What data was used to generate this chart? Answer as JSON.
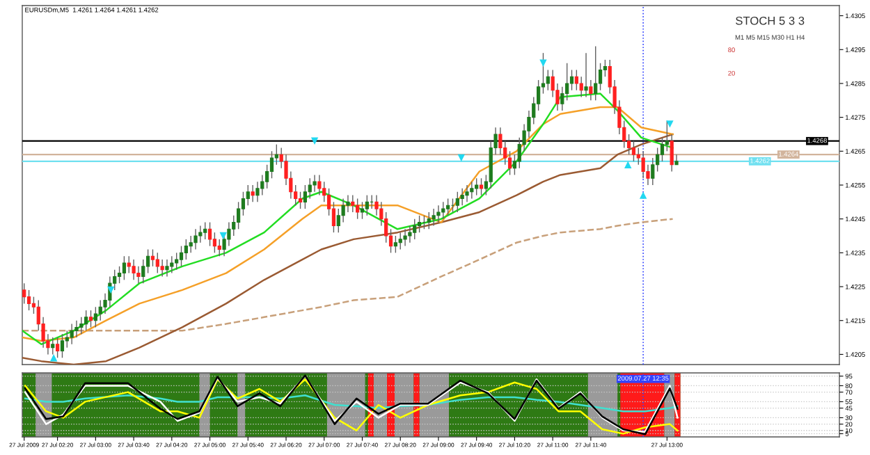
{
  "chart_data": [
    {
      "type": "candlestick",
      "title": "EURUSDm,M5  1.4261 1.4264 1.4261 1.4262",
      "annotations": [
        "STOCH 5 3 3",
        "M1 M5 M15 M30 H1 H4",
        "80",
        "20"
      ],
      "colors": [
        "#ff2020",
        "#ff2020",
        "#ff2020",
        "#ff2020",
        "#ff2020",
        "#ff2020",
        "#1e7b1e",
        "#ff2020",
        "#1e7b1e",
        "#1e7b1e",
        "#1e7b1e",
        "#1e7b1e",
        "#1e7b1e",
        "#1e7b1e",
        "#ff2020",
        "#1e7b1e",
        "#1e7b1e",
        "#1e7b1e",
        "#1e7b1e",
        "#1e7b1e",
        "#1e7b1e",
        "#1e7b1e",
        "#ff2020",
        "#ff2020",
        "#ff2020",
        "#1e7b1e",
        "#1e7b1e",
        "#ff2020",
        "#ff2020",
        "#ff2020",
        "#1e7b1e",
        "#1e7b1e",
        "#1e7b1e",
        "#1e7b1e",
        "#1e7b1e",
        "#1e7b1e",
        "#1e7b1e",
        "#1e7b1e",
        "#1e7b1e",
        "#ff2020",
        "#ff2020",
        "#ff2020",
        "#1e7b1e",
        "#1e7b1e",
        "#1e7b1e",
        "#1e7b1e",
        "#1e7b1e",
        "#1e7b1e",
        "#ff2020",
        "#1e7b1e",
        "#1e7b1e",
        "#1e7b1e",
        "#1e7b1e",
        "#1e7b1e",
        "#ff2020",
        "#ff2020",
        "#ff2020",
        "#ff2020",
        "#ff2020",
        "#1e7b1e",
        "#1e7b1e",
        "#1e7b1e",
        "#ff2020",
        "#ff2020",
        "#ff2020",
        "#ff2020",
        "#1e7b1e",
        "#1e7b1e",
        "#1e7b1e",
        "#ff2020",
        "#ff2020",
        "#1e7b1e",
        "#1e7b1e",
        "#1e7b1e",
        "#ff2020",
        "#ff2020",
        "#ff2020",
        "#ff2020",
        "#1e7b1e",
        "#1e7b1e",
        "#1e7b1e",
        "#1e7b1e",
        "#1e7b1e",
        "#1e7b1e",
        "#1e7b1e",
        "#1e7b1e",
        "#1e7b1e",
        "#1e7b1e",
        "#1e7b1e",
        "#1e7b1e",
        "#1e7b1e",
        "#1e7b1e",
        "#1e7b1e",
        "#1e7b1e",
        "#1e7b1e",
        "#1e7b1e",
        "#ff2020",
        "#1e7b1e",
        "#1e7b1e",
        "#1e7b1e",
        "#ff2020",
        "#ff2020",
        "#ff2020",
        "#1e7b1e",
        "#1e7b1e",
        "#1e7b1e",
        "#1e7b1e",
        "#1e7b1e",
        "#1e7b1e",
        "#1e7b1e",
        "#1e7b1e",
        "#ff2020",
        "#ff2020",
        "#1e7b1e",
        "#1e7b1e",
        "#1e7b1e",
        "#ff2020",
        "#ff2020",
        "#1e7b1e",
        "#ff2020",
        "#1e7b1e",
        "#1e7b1e",
        "#1e7b1e",
        "#ff2020",
        "#ff2020",
        "#ff2020",
        "#ff2020",
        "#ff2020",
        "#ff2020",
        "#ff2020",
        "#ff2020",
        "#ff2020",
        "#1e7b1e",
        "#1e7b1e",
        "#1e7b1e",
        "#1e7b1e",
        "#ff2020",
        "#1e7b1e"
      ],
      "x": [
        "2009-07-27T01:45",
        "2009-07-27T01:50",
        "2009-07-27T01:55",
        "2009-07-27T02:00",
        "2009-07-27T02:05",
        "2009-07-27T02:10",
        "2009-07-27T02:15",
        "2009-07-27T02:20",
        "2009-07-27T02:25",
        "2009-07-27T02:30",
        "2009-07-27T02:35",
        "2009-07-27T02:40",
        "2009-07-27T02:45",
        "2009-07-27T02:50",
        "2009-07-27T02:55",
        "2009-07-27T03:00",
        "2009-07-27T03:05",
        "2009-07-27T03:10",
        "2009-07-27T03:15",
        "2009-07-27T03:20",
        "2009-07-27T03:25",
        "2009-07-27T03:30",
        "2009-07-27T03:35",
        "2009-07-27T03:40",
        "2009-07-27T03:45",
        "2009-07-27T03:50",
        "2009-07-27T03:55",
        "2009-07-27T04:00",
        "2009-07-27T04:05",
        "2009-07-27T04:10",
        "2009-07-27T04:15",
        "2009-07-27T04:20",
        "2009-07-27T04:25",
        "2009-07-27T04:30",
        "2009-07-27T04:35",
        "2009-07-27T04:40",
        "2009-07-27T04:45",
        "2009-07-27T04:50",
        "2009-07-27T04:55",
        "2009-07-27T05:00",
        "2009-07-27T05:05",
        "2009-07-27T05:10",
        "2009-07-27T05:15",
        "2009-07-27T05:20",
        "2009-07-27T05:25",
        "2009-07-27T05:30",
        "2009-07-27T05:35",
        "2009-07-27T05:40",
        "2009-07-27T05:45",
        "2009-07-27T05:50",
        "2009-07-27T05:55",
        "2009-07-27T06:00",
        "2009-07-27T06:05",
        "2009-07-27T06:10",
        "2009-07-27T06:15",
        "2009-07-27T06:20",
        "2009-07-27T06:25",
        "2009-07-27T06:30",
        "2009-07-27T06:35",
        "2009-07-27T06:40",
        "2009-07-27T06:45",
        "2009-07-27T06:50",
        "2009-07-27T06:55",
        "2009-07-27T07:00",
        "2009-07-27T07:05",
        "2009-07-27T07:10",
        "2009-07-27T07:15",
        "2009-07-27T07:20",
        "2009-07-27T07:25",
        "2009-07-27T07:30",
        "2009-07-27T07:35",
        "2009-07-27T07:40",
        "2009-07-27T07:45",
        "2009-07-27T07:50",
        "2009-07-27T07:55",
        "2009-07-27T08:00",
        "2009-07-27T08:05",
        "2009-07-27T08:10",
        "2009-07-27T08:15",
        "2009-07-27T08:20",
        "2009-07-27T08:25",
        "2009-07-27T08:30",
        "2009-07-27T08:35",
        "2009-07-27T08:40",
        "2009-07-27T08:45",
        "2009-07-27T08:50",
        "2009-07-27T08:55",
        "2009-07-27T09:00",
        "2009-07-27T09:05",
        "2009-07-27T09:10",
        "2009-07-27T09:15",
        "2009-07-27T09:20",
        "2009-07-27T09:25",
        "2009-07-27T09:30",
        "2009-07-27T09:35",
        "2009-07-27T09:40",
        "2009-07-27T09:45",
        "2009-07-27T09:50",
        "2009-07-27T09:55",
        "2009-07-27T10:00",
        "2009-07-27T10:05",
        "2009-07-27T10:10",
        "2009-07-27T10:15",
        "2009-07-27T10:20",
        "2009-07-27T10:25",
        "2009-07-27T10:30",
        "2009-07-27T10:35",
        "2009-07-27T10:40",
        "2009-07-27T10:45",
        "2009-07-27T10:50",
        "2009-07-27T10:55",
        "2009-07-27T11:00",
        "2009-07-27T11:05",
        "2009-07-27T11:10",
        "2009-07-27T11:15",
        "2009-07-27T11:20",
        "2009-07-27T11:25",
        "2009-07-27T11:30",
        "2009-07-27T11:35",
        "2009-07-27T11:40",
        "2009-07-27T11:45",
        "2009-07-27T11:50",
        "2009-07-27T11:55",
        "2009-07-27T12:00",
        "2009-07-27T12:05",
        "2009-07-27T12:10",
        "2009-07-27T12:15",
        "2009-07-27T12:20",
        "2009-07-27T12:25",
        "2009-07-27T12:30",
        "2009-07-27T12:35",
        "2009-07-27T12:40",
        "2009-07-27T12:45",
        "2009-07-27T12:50",
        "2009-07-27T12:55",
        "2009-07-27T13:00",
        "2009-07-27T13:05",
        "2009-07-27T13:10"
      ],
      "ohlc": [
        [
          1.4224,
          1.4226,
          1.422,
          1.4222
        ],
        [
          1.4222,
          1.4224,
          1.4218,
          1.422
        ],
        [
          1.422,
          1.4222,
          1.4217,
          1.4219
        ],
        [
          1.4219,
          1.4221,
          1.4212,
          1.4214
        ],
        [
          1.4214,
          1.4216,
          1.4207,
          1.4209
        ],
        [
          1.4209,
          1.4211,
          1.4205,
          1.4207
        ],
        [
          1.4207,
          1.421,
          1.4205,
          1.4208
        ],
        [
          1.4208,
          1.421,
          1.4204,
          1.4206
        ],
        [
          1.4206,
          1.4211,
          1.4204,
          1.4209
        ],
        [
          1.4209,
          1.4212,
          1.4207,
          1.421
        ],
        [
          1.421,
          1.4214,
          1.4208,
          1.4212
        ],
        [
          1.4212,
          1.4215,
          1.421,
          1.4213
        ],
        [
          1.4213,
          1.4216,
          1.4211,
          1.4214
        ],
        [
          1.4214,
          1.4218,
          1.4212,
          1.4216
        ],
        [
          1.4216,
          1.4218,
          1.4213,
          1.4215
        ],
        [
          1.4215,
          1.4219,
          1.4213,
          1.4217
        ],
        [
          1.4217,
          1.4221,
          1.4215,
          1.4219
        ],
        [
          1.4219,
          1.4223,
          1.4217,
          1.4221
        ],
        [
          1.4221,
          1.4228,
          1.4219,
          1.4226
        ],
        [
          1.4226,
          1.423,
          1.4224,
          1.4228
        ],
        [
          1.4228,
          1.4231,
          1.4226,
          1.4229
        ],
        [
          1.4229,
          1.4234,
          1.4227,
          1.4232
        ],
        [
          1.4232,
          1.4234,
          1.4229,
          1.4231
        ],
        [
          1.4231,
          1.4233,
          1.4227,
          1.4229
        ],
        [
          1.4229,
          1.4231,
          1.4226,
          1.4228
        ],
        [
          1.4228,
          1.4233,
          1.4226,
          1.4231
        ],
        [
          1.4231,
          1.4236,
          1.4229,
          1.4234
        ],
        [
          1.4234,
          1.4236,
          1.4231,
          1.4233
        ],
        [
          1.4233,
          1.4235,
          1.4229,
          1.4231
        ],
        [
          1.4231,
          1.4233,
          1.4228,
          1.423
        ],
        [
          1.423,
          1.4233,
          1.4228,
          1.4231
        ],
        [
          1.4231,
          1.4234,
          1.4229,
          1.4232
        ],
        [
          1.4232,
          1.4235,
          1.423,
          1.4233
        ],
        [
          1.4233,
          1.4237,
          1.4231,
          1.4235
        ],
        [
          1.4235,
          1.4239,
          1.4233,
          1.4237
        ],
        [
          1.4237,
          1.424,
          1.4235,
          1.4238
        ],
        [
          1.4238,
          1.4242,
          1.4236,
          1.424
        ],
        [
          1.424,
          1.4243,
          1.4238,
          1.4241
        ],
        [
          1.4241,
          1.4244,
          1.4239,
          1.4242
        ],
        [
          1.4242,
          1.4244,
          1.4237,
          1.4239
        ],
        [
          1.4239,
          1.4241,
          1.4235,
          1.4237
        ],
        [
          1.4237,
          1.4239,
          1.4234,
          1.4236
        ],
        [
          1.4236,
          1.4241,
          1.4234,
          1.4239
        ],
        [
          1.4239,
          1.4244,
          1.4237,
          1.4242
        ],
        [
          1.4242,
          1.4246,
          1.424,
          1.4244
        ],
        [
          1.4244,
          1.425,
          1.4242,
          1.4248
        ],
        [
          1.4248,
          1.4253,
          1.4246,
          1.4251
        ],
        [
          1.4251,
          1.4255,
          1.4249,
          1.4253
        ],
        [
          1.4253,
          1.4255,
          1.425,
          1.4252
        ],
        [
          1.4252,
          1.4256,
          1.425,
          1.4254
        ],
        [
          1.4254,
          1.4258,
          1.4252,
          1.4256
        ],
        [
          1.4256,
          1.4261,
          1.4254,
          1.4259
        ],
        [
          1.4259,
          1.4265,
          1.4257,
          1.4263
        ],
        [
          1.4263,
          1.4267,
          1.4261,
          1.4264
        ],
        [
          1.4264,
          1.4266,
          1.426,
          1.4262
        ],
        [
          1.4262,
          1.4264,
          1.4255,
          1.4257
        ],
        [
          1.4257,
          1.4259,
          1.4251,
          1.4253
        ],
        [
          1.4253,
          1.4255,
          1.4249,
          1.4251
        ],
        [
          1.4251,
          1.4253,
          1.4248,
          1.425
        ],
        [
          1.425,
          1.4255,
          1.4248,
          1.4253
        ],
        [
          1.4253,
          1.4257,
          1.4251,
          1.4255
        ],
        [
          1.4255,
          1.4258,
          1.4253,
          1.4256
        ],
        [
          1.4256,
          1.4258,
          1.4252,
          1.4254
        ],
        [
          1.4254,
          1.4256,
          1.425,
          1.4252
        ],
        [
          1.4252,
          1.4254,
          1.4246,
          1.4248
        ],
        [
          1.4248,
          1.425,
          1.4241,
          1.4243
        ],
        [
          1.4243,
          1.4248,
          1.4241,
          1.4246
        ],
        [
          1.4246,
          1.4251,
          1.4244,
          1.4249
        ],
        [
          1.4249,
          1.4252,
          1.4247,
          1.425
        ],
        [
          1.425,
          1.4252,
          1.4247,
          1.4249
        ],
        [
          1.4249,
          1.4251,
          1.4245,
          1.4247
        ],
        [
          1.4247,
          1.425,
          1.4245,
          1.4248
        ],
        [
          1.4248,
          1.4252,
          1.4246,
          1.425
        ],
        [
          1.425,
          1.4252,
          1.4248,
          1.425
        ],
        [
          1.425,
          1.4252,
          1.4246,
          1.4248
        ],
        [
          1.4248,
          1.425,
          1.4243,
          1.4245
        ],
        [
          1.4245,
          1.4247,
          1.4238,
          1.424
        ],
        [
          1.424,
          1.4242,
          1.4235,
          1.4237
        ],
        [
          1.4237,
          1.424,
          1.4235,
          1.4238
        ],
        [
          1.4238,
          1.4241,
          1.4236,
          1.4239
        ],
        [
          1.4239,
          1.4242,
          1.4237,
          1.424
        ],
        [
          1.424,
          1.4243,
          1.4238,
          1.4241
        ],
        [
          1.4241,
          1.4245,
          1.4239,
          1.4243
        ],
        [
          1.4243,
          1.4246,
          1.4241,
          1.4244
        ],
        [
          1.4244,
          1.4246,
          1.4242,
          1.4244
        ],
        [
          1.4244,
          1.4247,
          1.4242,
          1.4245
        ],
        [
          1.4245,
          1.4248,
          1.4243,
          1.4246
        ],
        [
          1.4246,
          1.4249,
          1.4244,
          1.4247
        ],
        [
          1.4247,
          1.425,
          1.4245,
          1.4248
        ],
        [
          1.4248,
          1.4251,
          1.4246,
          1.4249
        ],
        [
          1.4249,
          1.4251,
          1.4247,
          1.4249
        ],
        [
          1.4249,
          1.4253,
          1.4247,
          1.4251
        ],
        [
          1.4251,
          1.4254,
          1.4249,
          1.4252
        ],
        [
          1.4252,
          1.4255,
          1.425,
          1.4253
        ],
        [
          1.4253,
          1.4256,
          1.4251,
          1.4254
        ],
        [
          1.4254,
          1.4257,
          1.4252,
          1.4255
        ],
        [
          1.4255,
          1.4257,
          1.4252,
          1.4254
        ],
        [
          1.4254,
          1.4258,
          1.4252,
          1.4256
        ],
        [
          1.4256,
          1.4268,
          1.4254,
          1.4266
        ],
        [
          1.4266,
          1.4272,
          1.4264,
          1.427
        ],
        [
          1.427,
          1.4272,
          1.4264,
          1.4266
        ],
        [
          1.4266,
          1.4268,
          1.4261,
          1.4263
        ],
        [
          1.4263,
          1.4265,
          1.4258,
          1.426
        ],
        [
          1.426,
          1.4264,
          1.4258,
          1.4262
        ],
        [
          1.4262,
          1.4269,
          1.426,
          1.4267
        ],
        [
          1.4267,
          1.4273,
          1.4265,
          1.4271
        ],
        [
          1.4271,
          1.4277,
          1.4269,
          1.4275
        ],
        [
          1.4275,
          1.4281,
          1.4273,
          1.4279
        ],
        [
          1.4279,
          1.4286,
          1.4277,
          1.4284
        ],
        [
          1.4284,
          1.4294,
          1.4282,
          1.4285
        ],
        [
          1.4285,
          1.4289,
          1.4283,
          1.4287
        ],
        [
          1.4287,
          1.4289,
          1.4281,
          1.4283
        ],
        [
          1.4283,
          1.4285,
          1.4277,
          1.4279
        ],
        [
          1.4279,
          1.4284,
          1.4277,
          1.4282
        ],
        [
          1.4282,
          1.4291,
          1.428,
          1.4285
        ],
        [
          1.4285,
          1.4289,
          1.4283,
          1.4287
        ],
        [
          1.4287,
          1.4289,
          1.4283,
          1.4285
        ],
        [
          1.4285,
          1.4287,
          1.4281,
          1.4283
        ],
        [
          1.4283,
          1.4294,
          1.4281,
          1.4284
        ],
        [
          1.4284,
          1.4286,
          1.428,
          1.4282
        ],
        [
          1.4282,
          1.4296,
          1.428,
          1.4285
        ],
        [
          1.4285,
          1.4291,
          1.4283,
          1.4289
        ],
        [
          1.4289,
          1.4292,
          1.4287,
          1.429
        ],
        [
          1.429,
          1.4292,
          1.4282,
          1.4284
        ],
        [
          1.4284,
          1.4286,
          1.4276,
          1.4278
        ],
        [
          1.4278,
          1.428,
          1.427,
          1.4272
        ],
        [
          1.4272,
          1.4274,
          1.4266,
          1.4268
        ],
        [
          1.4268,
          1.427,
          1.4264,
          1.4266
        ],
        [
          1.4266,
          1.4268,
          1.4262,
          1.4264
        ],
        [
          1.4264,
          1.4266,
          1.4261,
          1.4263
        ],
        [
          1.4263,
          1.4265,
          1.4257,
          1.4259
        ],
        [
          1.4259,
          1.4261,
          1.4255,
          1.4257
        ],
        [
          1.4257,
          1.4263,
          1.4255,
          1.4261
        ],
        [
          1.4261,
          1.4266,
          1.4259,
          1.4264
        ],
        [
          1.4264,
          1.4269,
          1.4262,
          1.4267
        ],
        [
          1.4267,
          1.4274,
          1.4265,
          1.4268
        ],
        [
          1.4268,
          1.427,
          1.4259,
          1.4261
        ],
        [
          1.4261,
          1.4264,
          1.4261,
          1.4262
        ]
      ],
      "series": [
        {
          "type": "line",
          "color": "#c8a07a",
          "line_style": "dashed",
          "x": [
            "2009-07-27T01:43",
            "2009-07-27T02:03",
            "2009-07-27T02:37",
            "2009-07-27T03:11",
            "2009-07-27T03:46",
            "2009-07-27T04:31",
            "2009-07-27T05:17",
            "2009-07-27T05:57",
            "2009-07-27T06:37",
            "2009-07-27T06:57",
            "2009-07-27T07:31",
            "2009-07-27T08:17",
            "2009-07-27T09:03",
            "2009-07-27T09:43",
            "2009-07-27T10:22",
            "2009-07-27T10:50",
            "2009-07-27T11:08",
            "2009-07-27T11:50",
            "2009-07-27T12:08",
            "2009-07-27T12:33",
            "2009-07-27T13:06"
          ],
          "values": [
            1.4212,
            1.4212,
            1.4212,
            1.4212,
            1.4212,
            1.4212,
            1.4214,
            1.4216,
            1.4218,
            1.4219,
            1.4221,
            1.4222,
            1.4228,
            1.4233,
            1.4238,
            1.424,
            1.4241,
            1.4242,
            1.4243,
            1.4244,
            1.4245
          ]
        },
        {
          "type": "line",
          "color": "#9a5a32",
          "line_style": "solid",
          "x": [
            "2009-07-27T01:43",
            "2009-07-27T02:03",
            "2009-07-27T02:37",
            "2009-07-27T03:11",
            "2009-07-27T03:46",
            "2009-07-27T04:31",
            "2009-07-27T05:17",
            "2009-07-27T05:57",
            "2009-07-27T06:37",
            "2009-07-27T06:57",
            "2009-07-27T07:31",
            "2009-07-27T08:17",
            "2009-07-27T09:03",
            "2009-07-27T09:43",
            "2009-07-27T10:22",
            "2009-07-27T10:50",
            "2009-07-27T11:08",
            "2009-07-27T11:50",
            "2009-07-27T12:08",
            "2009-07-27T12:33",
            "2009-07-27T13:06"
          ],
          "values": [
            1.4204,
            1.4203,
            1.4202,
            1.4203,
            1.4207,
            1.4213,
            1.422,
            1.4227,
            1.4233,
            1.4236,
            1.4239,
            1.4241,
            1.4244,
            1.4247,
            1.4252,
            1.4256,
            1.4258,
            1.426,
            1.4264,
            1.4267,
            1.427
          ]
        },
        {
          "type": "line",
          "color": "#f5a028",
          "line_style": "solid",
          "x": [
            "2009-07-27T01:43",
            "2009-07-27T02:03",
            "2009-07-27T02:37",
            "2009-07-27T03:11",
            "2009-07-27T03:46",
            "2009-07-27T04:31",
            "2009-07-27T05:17",
            "2009-07-27T05:57",
            "2009-07-27T06:37",
            "2009-07-27T06:57",
            "2009-07-27T07:31",
            "2009-07-27T08:17",
            "2009-07-27T09:03",
            "2009-07-27T09:43",
            "2009-07-27T10:22",
            "2009-07-27T10:50",
            "2009-07-27T11:08",
            "2009-07-27T11:50",
            "2009-07-27T12:08",
            "2009-07-27T12:33",
            "2009-07-27T13:06"
          ],
          "values": [
            1.421,
            1.4209,
            1.421,
            1.4215,
            1.422,
            1.4224,
            1.4229,
            1.4236,
            1.4245,
            1.4249,
            1.4249,
            1.4249,
            1.4244,
            1.4259,
            1.4265,
            1.4273,
            1.4276,
            1.4278,
            1.4278,
            1.4272,
            1.427
          ]
        },
        {
          "type": "line",
          "color": "#22dd22",
          "line_style": "solid",
          "x": [
            "2009-07-27T01:43",
            "2009-07-27T02:03",
            "2009-07-27T02:37",
            "2009-07-27T03:11",
            "2009-07-27T03:46",
            "2009-07-27T04:31",
            "2009-07-27T05:17",
            "2009-07-27T05:57",
            "2009-07-27T06:37",
            "2009-07-27T06:57",
            "2009-07-27T07:31",
            "2009-07-27T08:17",
            "2009-07-27T09:03",
            "2009-07-27T09:43",
            "2009-07-27T10:22",
            "2009-07-27T10:50",
            "2009-07-27T11:08",
            "2009-07-27T11:50",
            "2009-07-27T12:08",
            "2009-07-27T12:33",
            "2009-07-27T13:06"
          ],
          "values": [
            1.4212,
            1.4208,
            1.4212,
            1.4218,
            1.4226,
            1.4231,
            1.4235,
            1.4241,
            1.4251,
            1.4253,
            1.4249,
            1.4242,
            1.4245,
            1.4251,
            1.4262,
            1.4273,
            1.4281,
            1.4282,
            1.4277,
            1.4269,
            1.4266
          ]
        },
        {
          "type": "scatter",
          "color": "#22d8f0",
          "marker": "triangle-down",
          "x": [
            "2009-07-27T03:16",
            "2009-07-27T05:14",
            "2009-07-27T06:50",
            "2009-07-27T09:24",
            "2009-07-27T10:50",
            "2009-07-27T13:03"
          ],
          "values": [
            1.4224,
            1.424,
            1.4268,
            1.4263,
            1.4291,
            1.4273
          ]
        },
        {
          "type": "scatter",
          "color": "#22d8f0",
          "marker": "triangle",
          "x": [
            "2009-07-27T02:16",
            "2009-07-27T12:19",
            "2009-07-27T12:35"
          ],
          "values": [
            1.4204,
            1.4261,
            1.4252
          ]
        }
      ],
      "ref_lines": [
        {
          "axis": "y",
          "value": 1.4268,
          "label": "1.4268",
          "color": "#000000",
          "line_style": "solid"
        },
        {
          "axis": "y",
          "value": 1.4264,
          "label": "1.4264",
          "color": "#d2b49c",
          "line_style": "solid"
        },
        {
          "axis": "y",
          "value": 1.4262,
          "label": "1.4262",
          "color": "#70e0f0",
          "line_style": "solid"
        },
        {
          "axis": "x",
          "value": "2009-07-27T12:35",
          "color": "#3344ff",
          "line_style": "dotted"
        }
      ],
      "xlim": [
        "2009-07-27T01:43",
        "2009-07-27T16:01"
      ],
      "ylim": [
        1.4202,
        1.4308
      ],
      "yticks": [
        1.4205,
        1.4215,
        1.4225,
        1.4235,
        1.4245,
        1.4255,
        1.4265,
        1.4275,
        1.4285,
        1.4295,
        1.4305
      ],
      "tick_labels": "y"
    },
    {
      "type": "line",
      "series": [
        {
          "color": "#40e0d0",
          "x": [
            "2009-07-27T01:46",
            "2009-07-27T02:08",
            "2009-07-27T02:26",
            "2009-07-27T02:49",
            "2009-07-27T03:34",
            "2009-07-27T04:08",
            "2009-07-27T04:26",
            "2009-07-27T04:49",
            "2009-07-27T05:08",
            "2009-07-27T05:29",
            "2009-07-27T05:52",
            "2009-07-27T06:14",
            "2009-07-27T06:40",
            "2009-07-27T07:11",
            "2009-07-27T07:34",
            "2009-07-27T07:57",
            "2009-07-27T08:20",
            "2009-07-27T08:49",
            "2009-07-27T09:23",
            "2009-07-27T09:52",
            "2009-07-27T10:20",
            "2009-07-27T10:43",
            "2009-07-27T11:06",
            "2009-07-27T11:29",
            "2009-07-27T11:52",
            "2009-07-27T12:14",
            "2009-07-27T12:37",
            "2009-07-27T13:03",
            "2009-07-27T13:11"
          ],
          "values": [
            60,
            55,
            55,
            60,
            65,
            60,
            55,
            55,
            62,
            62,
            62,
            60,
            65,
            50,
            48,
            45,
            48,
            50,
            58,
            62,
            62,
            58,
            55,
            50,
            45,
            40,
            40,
            45,
            48
          ]
        },
        {
          "color": "#ffff00",
          "x": [
            "2009-07-27T01:46",
            "2009-07-27T02:08",
            "2009-07-27T02:26",
            "2009-07-27T02:49",
            "2009-07-27T03:34",
            "2009-07-27T04:08",
            "2009-07-27T04:26",
            "2009-07-27T04:49",
            "2009-07-27T05:08",
            "2009-07-27T05:29",
            "2009-07-27T05:52",
            "2009-07-27T06:14",
            "2009-07-27T06:40",
            "2009-07-27T07:11",
            "2009-07-27T07:34",
            "2009-07-27T07:57",
            "2009-07-27T08:20",
            "2009-07-27T08:49",
            "2009-07-27T09:23",
            "2009-07-27T09:52",
            "2009-07-27T10:20",
            "2009-07-27T10:43",
            "2009-07-27T11:06",
            "2009-07-27T11:29",
            "2009-07-27T11:52",
            "2009-07-27T12:14",
            "2009-07-27T12:37",
            "2009-07-27T13:03",
            "2009-07-27T13:11"
          ],
          "values": [
            80,
            40,
            30,
            55,
            70,
            40,
            40,
            30,
            90,
            60,
            75,
            55,
            90,
            30,
            10,
            50,
            30,
            50,
            65,
            70,
            85,
            75,
            40,
            40,
            12,
            5,
            15,
            20,
            10
          ]
        },
        {
          "color": "#ffffff",
          "x": [
            "2009-07-27T01:46",
            "2009-07-27T02:08",
            "2009-07-27T02:26",
            "2009-07-27T02:49",
            "2009-07-27T03:34",
            "2009-07-27T04:08",
            "2009-07-27T04:26",
            "2009-07-27T04:49",
            "2009-07-27T05:08",
            "2009-07-27T05:29",
            "2009-07-27T05:52",
            "2009-07-27T06:14",
            "2009-07-27T06:40",
            "2009-07-27T07:11",
            "2009-07-27T07:34",
            "2009-07-27T07:57",
            "2009-07-27T08:20",
            "2009-07-27T08:49",
            "2009-07-27T09:23",
            "2009-07-27T09:52",
            "2009-07-27T10:20",
            "2009-07-27T10:43",
            "2009-07-27T11:06",
            "2009-07-27T11:29",
            "2009-07-27T11:52",
            "2009-07-27T12:14",
            "2009-07-27T12:37",
            "2009-07-27T13:03",
            "2009-07-27T13:11"
          ],
          "values": [
            70,
            20,
            35,
            80,
            80,
            55,
            25,
            38,
            92,
            55,
            62,
            52,
            95,
            25,
            55,
            30,
            50,
            50,
            85,
            70,
            25,
            90,
            45,
            70,
            30,
            10,
            8,
            80,
            30
          ]
        },
        {
          "color": "#000000",
          "x": [
            "2009-07-27T01:46",
            "2009-07-27T02:08",
            "2009-07-27T02:26",
            "2009-07-27T02:49",
            "2009-07-27T03:34",
            "2009-07-27T04:08",
            "2009-07-27T04:26",
            "2009-07-27T04:49",
            "2009-07-27T05:08",
            "2009-07-27T05:29",
            "2009-07-27T05:52",
            "2009-07-27T06:14",
            "2009-07-27T06:40",
            "2009-07-27T07:11",
            "2009-07-27T07:34",
            "2009-07-27T07:57",
            "2009-07-27T08:20",
            "2009-07-27T08:49",
            "2009-07-27T09:23",
            "2009-07-27T09:52",
            "2009-07-27T10:20",
            "2009-07-27T10:43",
            "2009-07-27T11:06",
            "2009-07-27T11:29",
            "2009-07-27T11:52",
            "2009-07-27T12:14",
            "2009-07-27T12:37",
            "2009-07-27T13:03",
            "2009-07-27T13:11"
          ],
          "values": [
            76,
            28,
            32,
            84,
            84,
            44,
            28,
            40,
            94,
            48,
            68,
            48,
            96,
            20,
            60,
            36,
            52,
            52,
            88,
            68,
            28,
            88,
            44,
            68,
            32,
            12,
            4,
            76,
            44
          ]
        }
      ],
      "bands": [
        {
          "axis": "x",
          "from": "2009-07-27T01:43",
          "to": "2009-07-27T13:14",
          "color": "#2e7a14"
        },
        {
          "axis": "x",
          "from": "2009-07-27T01:57",
          "to": "2009-07-27T02:14",
          "color": "#9a9a9a"
        },
        {
          "axis": "x",
          "from": "2009-07-27T04:49",
          "to": "2009-07-27T05:00",
          "color": "#9a9a9a"
        },
        {
          "axis": "x",
          "from": "2009-07-27T05:29",
          "to": "2009-07-27T05:37",
          "color": "#9a9a9a"
        },
        {
          "axis": "x",
          "from": "2009-07-27T07:03",
          "to": "2009-07-27T07:43",
          "color": "#9a9a9a"
        },
        {
          "axis": "x",
          "from": "2009-07-27T07:52",
          "to": "2009-07-27T08:06",
          "color": "#9a9a9a"
        },
        {
          "axis": "x",
          "from": "2009-07-27T08:14",
          "to": "2009-07-27T08:34",
          "color": "#9a9a9a"
        },
        {
          "axis": "x",
          "from": "2009-07-27T08:40",
          "to": "2009-07-27T09:11",
          "color": "#9a9a9a"
        },
        {
          "axis": "x",
          "from": "2009-07-27T11:37",
          "to": "2009-07-27T12:08",
          "color": "#9a9a9a"
        },
        {
          "axis": "x",
          "from": "2009-07-27T12:57",
          "to": "2009-07-27T13:08",
          "color": "#9a9a9a"
        },
        {
          "axis": "x",
          "from": "2009-07-27T07:46",
          "to": "2009-07-27T07:52",
          "color": "#ff1a1a"
        },
        {
          "axis": "x",
          "from": "2009-07-27T08:06",
          "to": "2009-07-27T08:14",
          "color": "#ff1a1a"
        },
        {
          "axis": "x",
          "from": "2009-07-27T08:34",
          "to": "2009-07-27T08:40",
          "color": "#ff1a1a"
        },
        {
          "axis": "x",
          "from": "2009-07-27T12:11",
          "to": "2009-07-27T12:57",
          "color": "#ff1a1a"
        },
        {
          "axis": "x",
          "from": "2009-07-27T13:08",
          "to": "2009-07-27T13:14",
          "color": "#ff1a1a"
        }
      ],
      "ref_lines": [
        {
          "axis": "x",
          "value": "2009-07-27T12:35",
          "label": "2009.07.27 12:35",
          "color": "#3344ff",
          "line_style": "dotted"
        }
      ],
      "xlim": [
        "2009-07-27T01:43",
        "2009-07-27T16:01"
      ],
      "xticks": [
        {
          "value": "2009-07-27T01:45",
          "label": "27 Jul 2009"
        },
        {
          "value": "2009-07-27T02:20",
          "label": "27 Jul 02:20"
        },
        {
          "value": "2009-07-27T03:00",
          "label": "27 Jul 03:00"
        },
        {
          "value": "2009-07-27T03:40",
          "label": "27 Jul 03:40"
        },
        {
          "value": "2009-07-27T04:20",
          "label": "27 Jul 04:20"
        },
        {
          "value": "2009-07-27T05:00",
          "label": "27 Jul 05:00"
        },
        {
          "value": "2009-07-27T05:40",
          "label": "27 Jul 05:40"
        },
        {
          "value": "2009-07-27T06:20",
          "label": "27 Jul 06:20"
        },
        {
          "value": "2009-07-27T07:00",
          "label": "27 Jul 07:00"
        },
        {
          "value": "2009-07-27T07:40",
          "label": "27 Jul 07:40"
        },
        {
          "value": "2009-07-27T08:20",
          "label": "27 Jul 08:20"
        },
        {
          "value": "2009-07-27T09:00",
          "label": "27 Jul 09:00"
        },
        {
          "value": "2009-07-27T09:40",
          "label": "27 Jul 09:40"
        },
        {
          "value": "2009-07-27T10:20",
          "label": "27 Jul 10:20"
        },
        {
          "value": "2009-07-27T11:00",
          "label": "27 Jul 11:00"
        },
        {
          "value": "2009-07-27T11:40",
          "label": "27 Jul 11:40"
        },
        {
          "value": "2009-07-27T13:00",
          "label": "27 Jul 13:00"
        }
      ],
      "ylim": [
        0,
        100
      ],
      "yticks": [
        5,
        10,
        20,
        30,
        45,
        55,
        70,
        80,
        95
      ],
      "grid": "y"
    }
  ]
}
